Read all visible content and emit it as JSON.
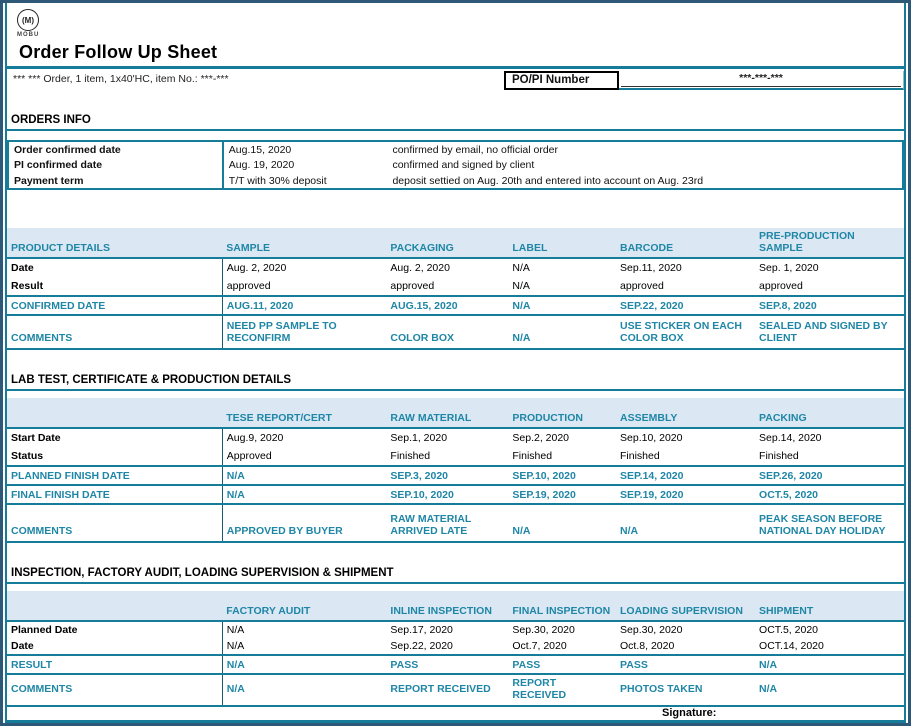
{
  "page": {
    "logo_glyph": "(M)",
    "logo_text": "MOBU",
    "title": "Order Follow Up Sheet",
    "subtitle": "*** *** Order, 1 item, 1x40'HC, item No.: ***-***",
    "po_label": "PO/PI Number",
    "po_value": "***-***-***",
    "signature_label": "Signature:"
  },
  "colors": {
    "accent_teal": "#157d99",
    "teal_text": "#1f86a6",
    "header_band_bg": "#dbe8f4",
    "outer_border": "#2d5878"
  },
  "orders_info": {
    "section_title": "ORDERS INFO",
    "rows": [
      {
        "label": "Order confirmed date",
        "value": "Aug.15, 2020",
        "comment": "confirmed by email, no official order"
      },
      {
        "label": "PI confirmed date",
        "value": "Aug. 19, 2020",
        "comment": "confirmed and signed by client"
      },
      {
        "label": "Payment term",
        "value": "T/T with 30% deposit",
        "comment": "deposit settied on Aug. 20th and entered into account on Aug. 23rd"
      }
    ]
  },
  "product_table": {
    "headers": [
      "PRODUCT DETAILS",
      "SAMPLE",
      "PACKAGING",
      "LABEL",
      "BARCODE",
      "PRE-PRODUCTION SAMPLE"
    ],
    "rows": [
      {
        "label": "Date",
        "style": "plain",
        "cells": [
          "Aug. 2, 2020",
          "Aug. 2, 2020",
          "N/A",
          "Sep.11, 2020",
          "Sep. 1, 2020"
        ]
      },
      {
        "label": "Result",
        "style": "plain",
        "cells": [
          "approved",
          "approved",
          "N/A",
          "approved",
          "approved"
        ]
      },
      {
        "label": "CONFIRMED DATE",
        "style": "teal",
        "cells": [
          "AUG.11, 2020",
          "AUG.15, 2020",
          "N/A",
          "SEP.22, 2020",
          "SEP.8, 2020"
        ]
      },
      {
        "label": "COMMENTS",
        "style": "teal",
        "cells": [
          "NEED PP SAMPLE TO RECONFIRM",
          "COLOR BOX",
          "N/A",
          "USE STICKER ON EACH COLOR BOX",
          "SEALED AND SIGNED BY CLIENT"
        ]
      }
    ]
  },
  "lab_section": {
    "section_title": "LAB TEST, CERTIFICATE & PRODUCTION DETAILS",
    "headers": [
      "",
      "TESE REPORT/CERT",
      "RAW MATERIAL",
      "PRODUCTION",
      "ASSEMBLY",
      "PACKING"
    ],
    "rows": [
      {
        "label": "Start Date",
        "style": "plain",
        "cells": [
          "Aug.9, 2020",
          "Sep.1, 2020",
          "Sep.2, 2020",
          "Sep.10, 2020",
          "Sep.14, 2020"
        ]
      },
      {
        "label": "Status",
        "style": "plain",
        "cells": [
          "Approved",
          "Finished",
          "Finished",
          "Finished",
          "Finished"
        ]
      },
      {
        "label": "PLANNED FINISH DATE",
        "style": "teal",
        "cells": [
          "N/A",
          "SEP.3, 2020",
          "SEP.10, 2020",
          "SEP.14, 2020",
          "SEP.26, 2020"
        ]
      },
      {
        "label": "FINAL FINISH DATE",
        "style": "teal",
        "cells": [
          "N/A",
          "SEP.10, 2020",
          "SEP.19, 2020",
          "SEP.19, 2020",
          "OCT.5, 2020"
        ]
      },
      {
        "label": "COMMENTS",
        "style": "teal",
        "cells": [
          "APPROVED BY BUYER",
          "RAW MATERIAL ARRIVED LATE",
          "N/A",
          "N/A",
          "PEAK SEASON BEFORE NATIONAL DAY HOLIDAY"
        ]
      }
    ]
  },
  "inspection_section": {
    "section_title": "INSPECTION, FACTORY AUDIT, LOADING SUPERVISION & SHIPMENT",
    "headers": [
      "",
      "FACTORY AUDIT",
      "INLINE INSPECTION",
      "FINAL INSPECTION",
      "LOADING SUPERVISION",
      "SHIPMENT"
    ],
    "rows": [
      {
        "label": "Planned Date",
        "style": "plain",
        "cells": [
          "N/A",
          "Sep.17, 2020",
          "Sep.30, 2020",
          "Sep.30, 2020",
          "OCT.5, 2020"
        ]
      },
      {
        "label": "Date",
        "style": "plain",
        "cells": [
          "N/A",
          "Sep.22, 2020",
          "Oct.7, 2020",
          "Oct.8, 2020",
          "OCT.14, 2020"
        ]
      },
      {
        "label": "RESULT",
        "style": "teal",
        "cells": [
          "N/A",
          "PASS",
          "PASS",
          "PASS",
          "N/A"
        ]
      },
      {
        "label": "COMMENTS",
        "style": "teal",
        "cells": [
          "N/A",
          "REPORT RECEIVED",
          "REPORT RECEIVED",
          "PHOTOS TAKEN",
          "N/A"
        ]
      }
    ]
  }
}
